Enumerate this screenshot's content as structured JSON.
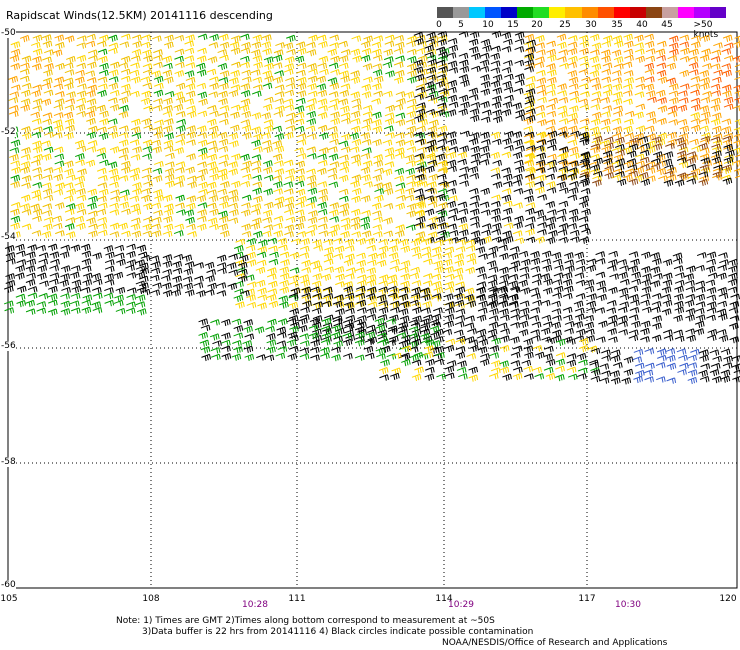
{
  "title": "Rapidscat Winds(12.5KM) 20141116 descending",
  "colorbar": {
    "labels": [
      "0",
      "5",
      "10",
      "15",
      "20",
      "25",
      "30",
      "35",
      "40",
      "45",
      ">50 knots"
    ],
    "colors": [
      "#555555",
      "#999999",
      "#00c8ff",
      "#0055ff",
      "#0000c8",
      "#00aa00",
      "#22dd22",
      "#ffee00",
      "#ffc000",
      "#ff8c00",
      "#ff5000",
      "#ff0000",
      "#c80000",
      "#8b4513",
      "#c8a0a0",
      "#ff00ff",
      "#b400ff",
      "#6400c8"
    ]
  },
  "map": {
    "lon_range": [
      105,
      120
    ],
    "lat_range": [
      -50,
      -60
    ],
    "lon_labels": [
      "105",
      "108",
      "111",
      "114",
      "117",
      "120"
    ],
    "lat_labels": [
      "-50",
      "-52",
      "-54",
      "-56",
      "-58",
      "-60"
    ],
    "time_labels": [
      "10:28",
      "10:29",
      "10:30"
    ],
    "barb_colors": {
      "calm": "#000000",
      "light": "#00a000",
      "moderate": "#ffd700",
      "strong": "#ffa500",
      "very_strong": "#ff6000",
      "brown": "#8b4513",
      "blue": "#3a5fcd"
    }
  },
  "notes": {
    "line1": "Note: 1) Times are GMT 2)Times along bottom correspond to measurement at ~50S",
    "line2": "3)Data buffer is 22 hrs from 20141116 4) Black circles indicate possible contamination",
    "credit": "NOAA/NESDIS/Office of Research and Applications"
  }
}
